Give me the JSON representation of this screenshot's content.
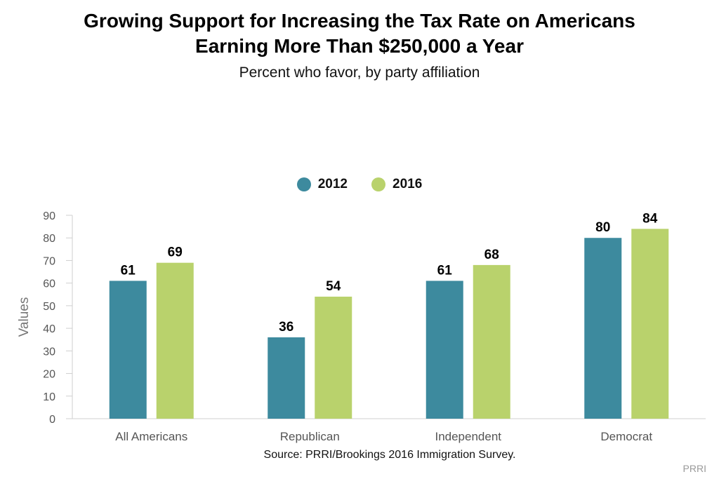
{
  "title_line1": "Growing Support for Increasing the Tax Rate on Americans",
  "title_line2": "Earning More Than $250,000 a Year",
  "subtitle": "Percent who favor, by party affiliation",
  "source": "Source: PRRI/Brookings 2016 Immigration Survey.",
  "credit": "PRRI",
  "colors": {
    "series_2012": "#3d8a9e",
    "series_2016": "#b9d26c"
  },
  "chart_data": {
    "type": "bar",
    "categories": [
      "All Americans",
      "Republican",
      "Independent",
      "Democrat"
    ],
    "series": [
      {
        "name": "2012",
        "values": [
          61,
          36,
          61,
          80
        ]
      },
      {
        "name": "2016",
        "values": [
          69,
          54,
          68,
          84
        ]
      }
    ],
    "ylabel": "Values",
    "ylim": [
      0,
      90
    ],
    "yticks": [
      0,
      10,
      20,
      30,
      40,
      50,
      60,
      70,
      80,
      90
    ],
    "grid": false,
    "legend_position": "top-center"
  }
}
